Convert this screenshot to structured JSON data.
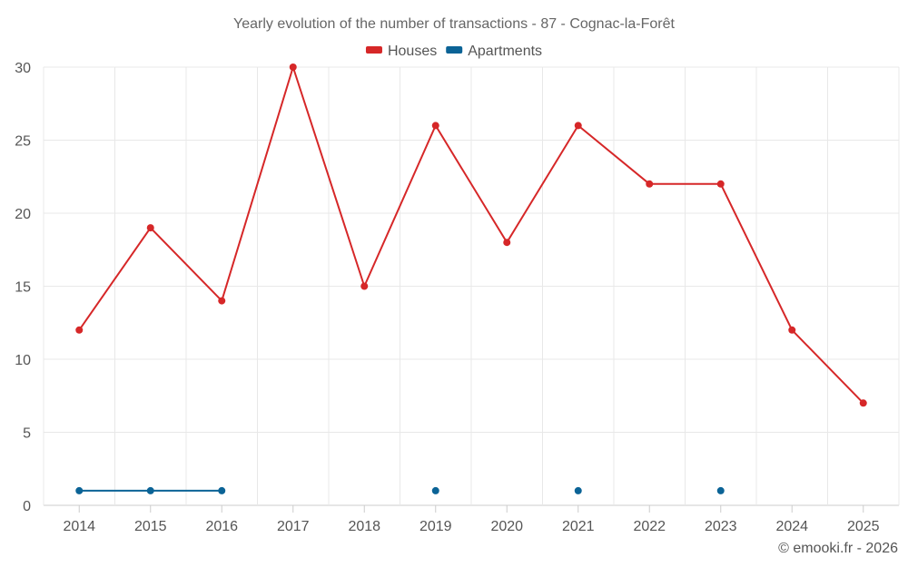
{
  "chart_data": {
    "type": "line",
    "title": "Yearly evolution of the number of transactions - 87 - Cognac-la-Forêt",
    "x": [
      "2014",
      "2015",
      "2016",
      "2017",
      "2018",
      "2019",
      "2020",
      "2021",
      "2022",
      "2023",
      "2024",
      "2025"
    ],
    "ylim": [
      0,
      30
    ],
    "yticks": [
      0,
      5,
      10,
      15,
      20,
      25,
      30
    ],
    "series": [
      {
        "name": "Houses",
        "color": "#d62728",
        "values": [
          12,
          19,
          14,
          30,
          15,
          26,
          18,
          26,
          22,
          22,
          12,
          7
        ]
      },
      {
        "name": "Apartments",
        "color": "#0b6396",
        "values": [
          1,
          1,
          1,
          null,
          null,
          1,
          null,
          1,
          null,
          1,
          null,
          null
        ]
      }
    ],
    "legend_position": "top-center",
    "grid": true
  },
  "credit": "© emooki.fr - 2026"
}
